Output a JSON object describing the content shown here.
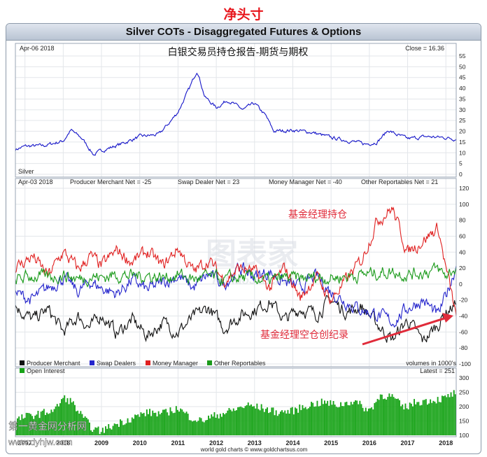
{
  "page": {
    "heading": "净头寸",
    "chart_title": "Silver COTs - Disaggregated Futures & Options",
    "watermark_bottom_left": "第一黄金网分析网",
    "watermark_url": "www.dyhjw.com",
    "watermark_center": "图表家",
    "watermark_center_sub": "TubiaoJia.com",
    "footer_credit": "world gold charts © www.goldchartsus.com",
    "colors": {
      "heading": "#e8161d",
      "price": "#1414c8",
      "producer": "#111111",
      "swap": "#2525cc",
      "money": "#e02020",
      "other": "#1a9a1a",
      "oi": "#17a317",
      "annotation": "#e02b3a"
    }
  },
  "chart_data": [
    {
      "type": "line",
      "panel": "price",
      "date_label": "Apr-06  2018",
      "overlay_title": "白银交易员持仓报告-期货与期权",
      "readout": "Close = 16.36",
      "series_label": "Silver",
      "x_range": [
        2006.75,
        2018.27
      ],
      "ylim": [
        0,
        55
      ],
      "y_ticks": [
        0,
        5,
        10,
        15,
        20,
        25,
        30,
        35,
        40,
        45,
        50,
        55
      ],
      "grid": true,
      "series": [
        {
          "name": "Silver",
          "x": [
            2006.75,
            2007.0,
            2007.5,
            2008.0,
            2008.2,
            2008.5,
            2008.8,
            2009.0,
            2009.5,
            2010.0,
            2010.5,
            2010.8,
            2011.0,
            2011.3,
            2011.5,
            2011.7,
            2012.0,
            2012.3,
            2012.7,
            2013.0,
            2013.3,
            2013.5,
            2014.0,
            2014.5,
            2015.0,
            2015.5,
            2015.9,
            2016.2,
            2016.5,
            2016.7,
            2017.0,
            2017.5,
            2018.0,
            2018.27
          ],
          "values": [
            11.5,
            13.0,
            13.3,
            15.5,
            20.5,
            16.5,
            9.0,
            11.0,
            14.0,
            17.5,
            18.5,
            24.5,
            29.0,
            40.0,
            48.5,
            36.0,
            31.0,
            34.5,
            30.0,
            33.0,
            27.0,
            20.0,
            20.5,
            19.5,
            17.0,
            15.5,
            14.0,
            15.0,
            20.5,
            18.5,
            16.5,
            17.5,
            17.0,
            16.36
          ]
        }
      ]
    },
    {
      "type": "line",
      "panel": "net_positions",
      "date_label": "Apr-03  2018",
      "readouts": [
        "Producer Merchant Net = -25",
        "Swap Dealer Net = 23",
        "Money Manager Net = -40",
        "Other Reportables Net = 21"
      ],
      "annotations": [
        "基金经理持仓",
        "基金经理空仓创纪录"
      ],
      "x_range": [
        2006.75,
        2018.27
      ],
      "ylim": [
        -100,
        120
      ],
      "y_ticks": [
        -100,
        -80,
        -60,
        -40,
        -20,
        0,
        20,
        40,
        60,
        80,
        100,
        120
      ],
      "grid": true,
      "legend": [
        "Producer Merchant",
        "Swap Dealers",
        "Money Manager",
        "Other Reportables"
      ],
      "units_note": "volumes in 1000's",
      "series": [
        {
          "name": "Producer Merchant",
          "x": [
            2006.75,
            2007.2,
            2007.6,
            2008.0,
            2008.4,
            2008.7,
            2009.0,
            2009.4,
            2009.8,
            2010.2,
            2010.6,
            2011.0,
            2011.4,
            2011.8,
            2012.2,
            2012.6,
            2013.0,
            2013.4,
            2013.8,
            2014.2,
            2014.6,
            2015.0,
            2015.4,
            2015.8,
            2016.2,
            2016.6,
            2017.0,
            2017.4,
            2017.8,
            2018.0,
            2018.27
          ],
          "values": [
            -28,
            -45,
            -32,
            -60,
            -40,
            -55,
            -38,
            -62,
            -45,
            -65,
            -48,
            -60,
            -42,
            -30,
            -55,
            -40,
            -32,
            -22,
            -45,
            -30,
            -38,
            -20,
            -35,
            -28,
            -50,
            -70,
            -45,
            -72,
            -50,
            -35,
            -25
          ]
        },
        {
          "name": "Swap Dealers",
          "x": [
            2006.75,
            2007.2,
            2007.6,
            2008.0,
            2008.4,
            2008.7,
            2009.0,
            2009.4,
            2009.8,
            2010.2,
            2010.6,
            2011.0,
            2011.4,
            2011.8,
            2012.2,
            2012.6,
            2013.0,
            2013.4,
            2013.8,
            2014.2,
            2014.6,
            2015.0,
            2015.4,
            2015.8,
            2016.2,
            2016.6,
            2017.0,
            2017.4,
            2017.8,
            2018.0,
            2018.27
          ],
          "values": [
            -12,
            -20,
            -5,
            8,
            -10,
            3,
            -5,
            -12,
            5,
            -8,
            2,
            10,
            -5,
            12,
            0,
            20,
            10,
            15,
            2,
            -5,
            10,
            -10,
            -22,
            -32,
            -38,
            -48,
            -30,
            -20,
            -40,
            -15,
            23
          ]
        },
        {
          "name": "Money Manager",
          "x": [
            2006.75,
            2007.2,
            2007.6,
            2008.0,
            2008.4,
            2008.7,
            2009.0,
            2009.4,
            2009.8,
            2010.2,
            2010.6,
            2011.0,
            2011.4,
            2011.8,
            2012.2,
            2012.6,
            2013.0,
            2013.4,
            2013.8,
            2014.2,
            2014.6,
            2015.0,
            2015.4,
            2015.8,
            2016.2,
            2016.6,
            2017.0,
            2017.4,
            2017.8,
            2018.0,
            2018.27
          ],
          "values": [
            20,
            35,
            10,
            40,
            18,
            35,
            22,
            42,
            28,
            40,
            22,
            45,
            15,
            30,
            5,
            20,
            15,
            -5,
            20,
            -18,
            10,
            -20,
            5,
            30,
            80,
            95,
            40,
            55,
            70,
            20,
            -40
          ]
        },
        {
          "name": "Other Reportables",
          "x": [
            2006.75,
            2007.2,
            2007.6,
            2008.0,
            2008.4,
            2008.7,
            2009.0,
            2009.4,
            2009.8,
            2010.2,
            2010.6,
            2011.0,
            2011.4,
            2011.8,
            2012.2,
            2012.6,
            2013.0,
            2013.4,
            2013.8,
            2014.2,
            2014.6,
            2015.0,
            2015.4,
            2015.8,
            2016.2,
            2016.6,
            2017.0,
            2017.4,
            2017.8,
            2018.0,
            2018.27
          ],
          "values": [
            5,
            10,
            8,
            12,
            6,
            10,
            8,
            12,
            10,
            11,
            8,
            12,
            6,
            9,
            5,
            8,
            7,
            4,
            8,
            6,
            9,
            8,
            10,
            12,
            14,
            16,
            12,
            15,
            18,
            10,
            21
          ]
        }
      ]
    },
    {
      "type": "bar",
      "panel": "open_interest",
      "series_label": "Open Interest",
      "readout": "Latest = 251",
      "x_range": [
        2006.75,
        2018.27
      ],
      "ylim": [
        100,
        300
      ],
      "y_ticks": [
        100,
        150,
        200,
        250,
        300
      ],
      "grid": true,
      "x_tick_labels": [
        "2007",
        "2008",
        "2009",
        "2010",
        "2011",
        "2012",
        "2013",
        "2014",
        "2015",
        "2016",
        "2017",
        "2018"
      ],
      "x_tick_values": [
        2007,
        2008,
        2009,
        2010,
        2011,
        2012,
        2013,
        2014,
        2015,
        2016,
        2017,
        2018
      ],
      "series": [
        {
          "name": "Open Interest",
          "x": [
            2006.75,
            2007.0,
            2007.4,
            2007.8,
            2008.0,
            2008.2,
            2008.5,
            2008.8,
            2009.0,
            2009.4,
            2009.8,
            2010.2,
            2010.6,
            2011.0,
            2011.3,
            2011.6,
            2012.0,
            2012.4,
            2012.8,
            2013.2,
            2013.6,
            2014.0,
            2014.4,
            2014.8,
            2015.2,
            2015.6,
            2016.0,
            2016.3,
            2016.6,
            2016.9,
            2017.2,
            2017.5,
            2017.8,
            2018.0,
            2018.27
          ],
          "values": [
            150,
            165,
            175,
            190,
            230,
            220,
            165,
            120,
            115,
            140,
            160,
            180,
            175,
            195,
            165,
            150,
            170,
            185,
            205,
            195,
            180,
            185,
            205,
            215,
            205,
            220,
            185,
            240,
            235,
            195,
            215,
            220,
            225,
            230,
            251
          ]
        }
      ]
    }
  ]
}
